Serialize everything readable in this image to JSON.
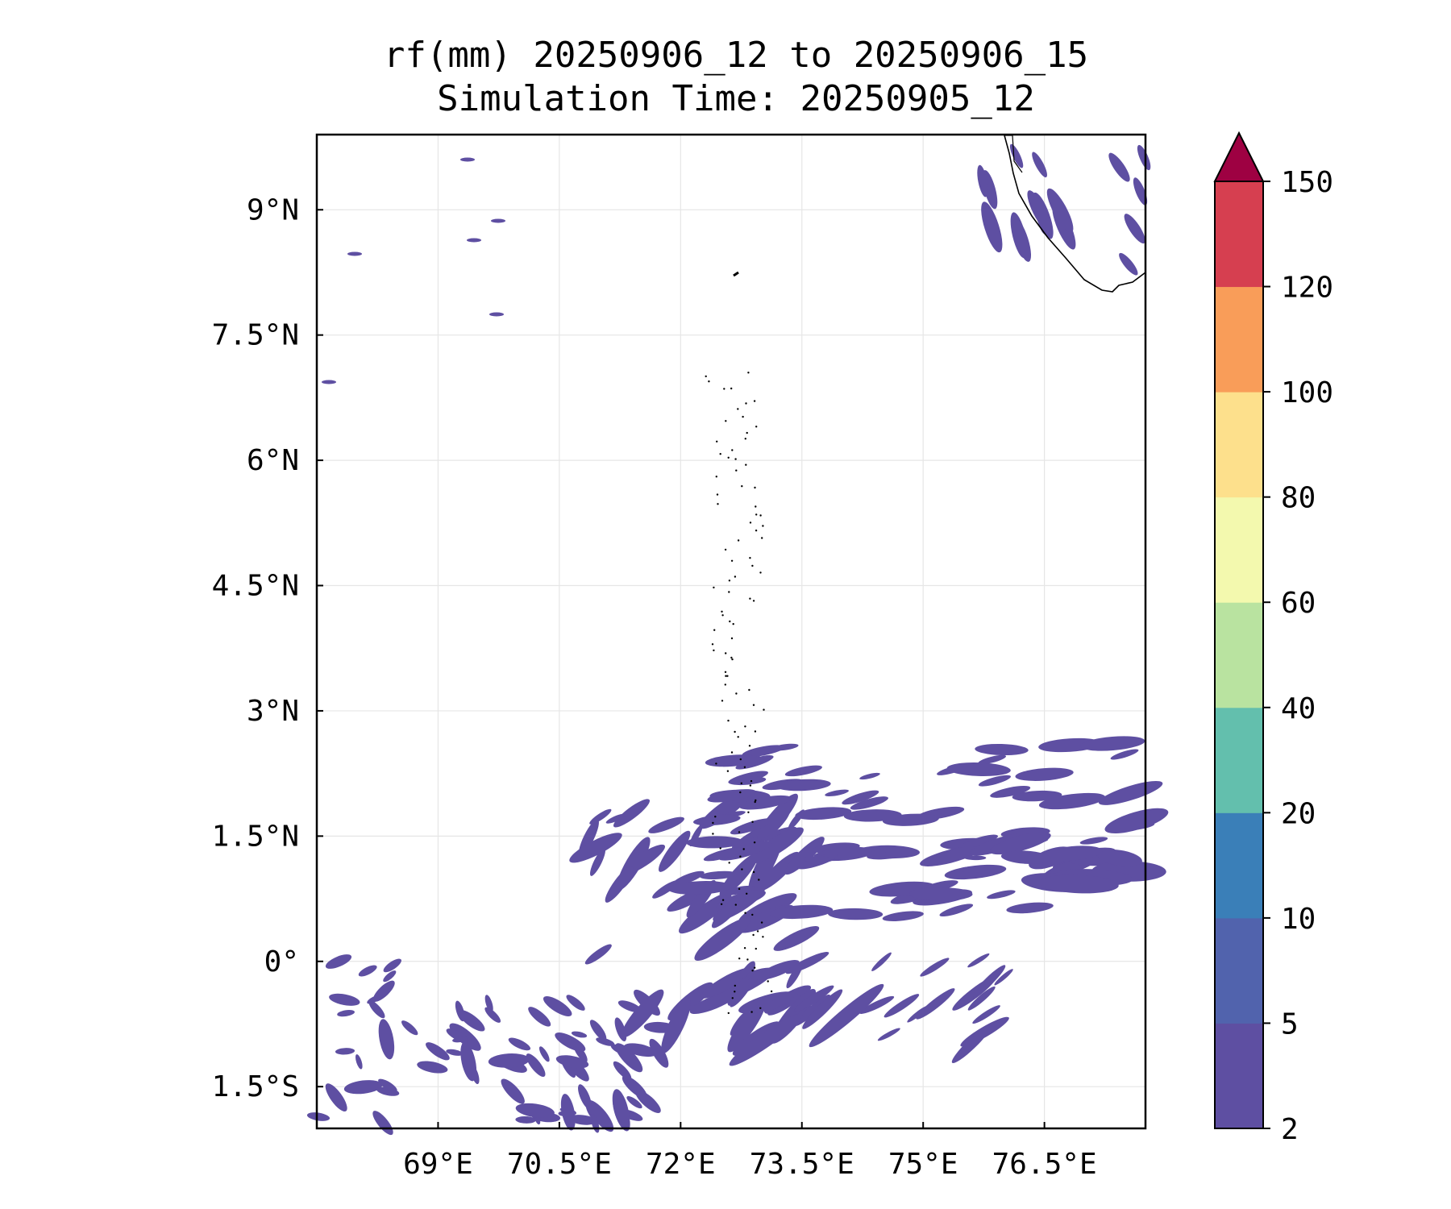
{
  "title_line1": "rf(mm) 20250906_12 to 20250906_15",
  "title_line2": "Simulation Time: 20250905_12",
  "map": {
    "lon_range": [
      67.5,
      77.75
    ],
    "lat_range": [
      -2.0,
      9.9
    ],
    "lon_ticks": [
      {
        "value": 69.0,
        "label": "69°E"
      },
      {
        "value": 70.5,
        "label": "70.5°E"
      },
      {
        "value": 72.0,
        "label": "72°E"
      },
      {
        "value": 73.5,
        "label": "73.5°E"
      },
      {
        "value": 75.0,
        "label": "75°E"
      },
      {
        "value": 76.5,
        "label": "76.5°E"
      }
    ],
    "lat_ticks": [
      {
        "value": 9.0,
        "label": "9°N"
      },
      {
        "value": 7.5,
        "label": "7.5°N"
      },
      {
        "value": 6.0,
        "label": "6°N"
      },
      {
        "value": 4.5,
        "label": "4.5°N"
      },
      {
        "value": 3.0,
        "label": "3°N"
      },
      {
        "value": 1.5,
        "label": "1.5°N"
      },
      {
        "value": 0.0,
        "label": "0°"
      },
      {
        "value": -1.5,
        "label": "1.5°S"
      }
    ],
    "grid": true,
    "rain_color": "#5e4fa2"
  },
  "colorbar": {
    "levels": [
      "2",
      "5",
      "10",
      "20",
      "40",
      "60",
      "80",
      "100",
      "120",
      "150"
    ],
    "colors": [
      "#5e4fa2",
      "#5163ad",
      "#3a7fb8",
      "#63bfad",
      "#b9e3a0",
      "#f3f9ae",
      "#fde08c",
      "#f99d59",
      "#d63f50"
    ],
    "extend_color": "#9e0142",
    "extend": "max"
  }
}
